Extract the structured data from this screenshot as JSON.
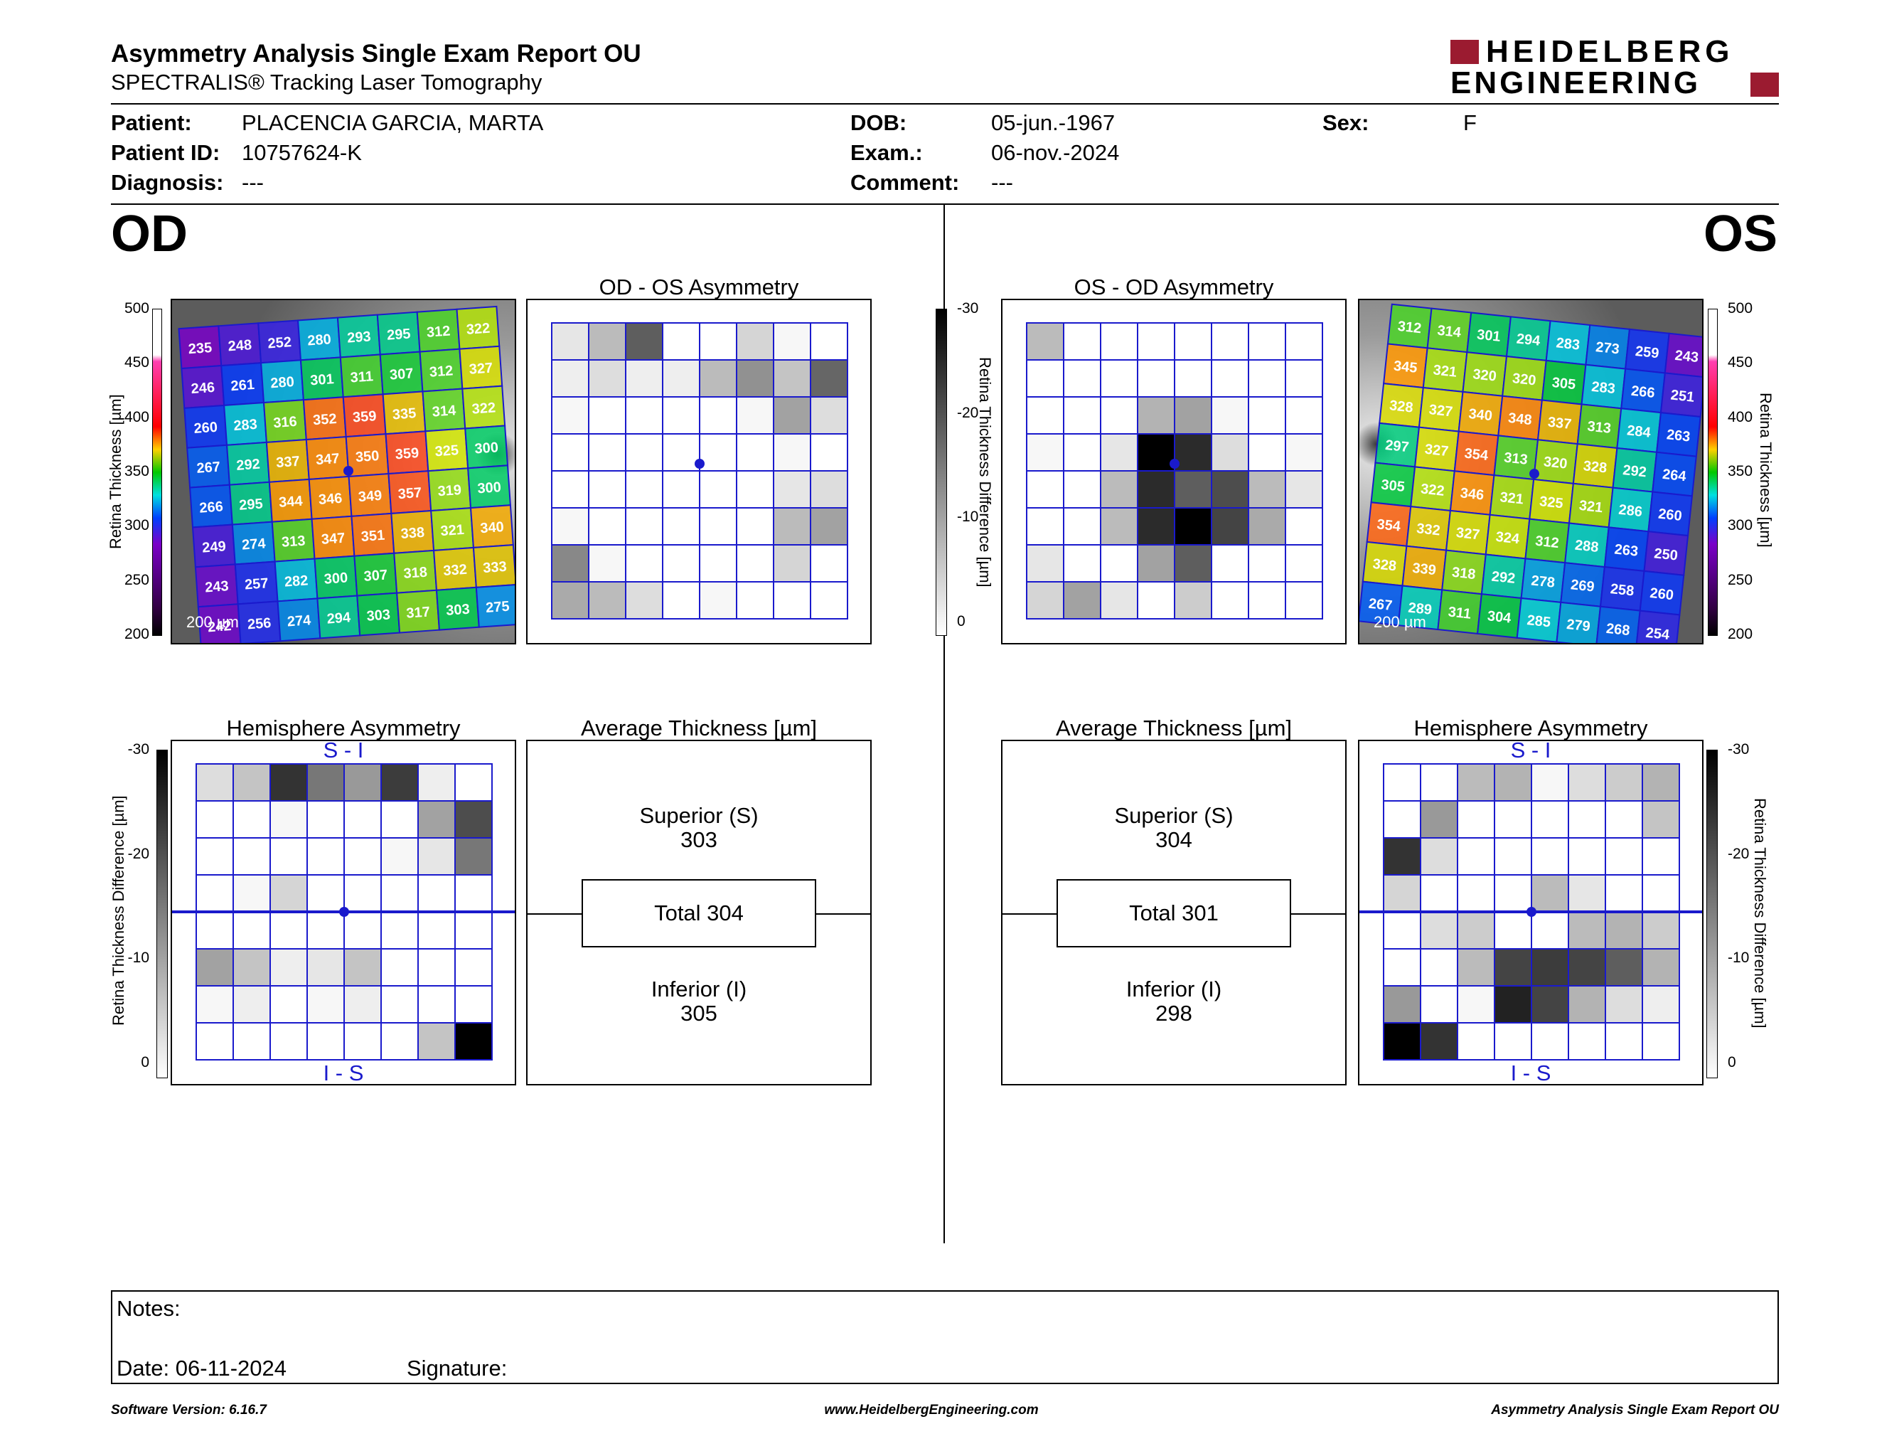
{
  "header": {
    "title": "Asymmetry Analysis Single Exam Report OU",
    "subtitle": "SPECTRALIS® Tracking Laser Tomography",
    "logo_line1": "HEIDELBERG",
    "logo_line2": "ENGINEERING",
    "brand_color": "#9b1b30"
  },
  "patient": {
    "patient_label": "Patient:",
    "patient_value": "PLACENCIA GARCIA, MARTA",
    "id_label": "Patient ID:",
    "id_value": "10757624-K",
    "diag_label": "Diagnosis:",
    "diag_value": "---",
    "dob_label": "DOB:",
    "dob_value": "05-jun.-1967",
    "exam_label": "Exam.:",
    "exam_value": "06-nov.-2024",
    "comment_label": "Comment:",
    "comment_value": "---",
    "sex_label": "Sex:",
    "sex_value": "F"
  },
  "eyes": {
    "od": "OD",
    "os": "OS"
  },
  "labels": {
    "od_asym": "OD - OS Asymmetry",
    "os_asym": "OS - OD Asymmetry",
    "hemi": "Hemisphere Asymmetry",
    "avg": "Average Thickness [µm]",
    "s_i": "S - I",
    "i_s": "I - S",
    "rt_axis": "Retina Thickness [µm]",
    "rtd_axis": "Retina Thickness Difference [µm]",
    "scale_bar": "200 µm"
  },
  "thickness_scale": [
    "500",
    "450",
    "400",
    "350",
    "300",
    "250",
    "200"
  ],
  "diff_scale": [
    "-30",
    "-20",
    "-10",
    "0"
  ],
  "od": {
    "grid": [
      [
        235,
        248,
        252,
        280,
        293,
        295,
        312,
        322
      ],
      [
        246,
        261,
        280,
        301,
        311,
        307,
        312,
        327
      ],
      [
        260,
        283,
        316,
        352,
        359,
        335,
        314,
        322
      ],
      [
        267,
        292,
        337,
        347,
        350,
        359,
        325,
        300
      ],
      [
        266,
        295,
        344,
        346,
        349,
        357,
        319,
        300
      ],
      [
        249,
        274,
        313,
        347,
        351,
        338,
        321,
        340
      ],
      [
        243,
        257,
        282,
        300,
        307,
        318,
        332,
        333
      ],
      [
        242,
        256,
        274,
        294,
        303,
        317,
        303,
        275
      ]
    ],
    "avg": {
      "sup_label": "Superior (S)",
      "sup": "303",
      "total": "Total 304",
      "inf_label": "Inferior (I)",
      "inf": "305"
    },
    "asym_gray": [
      [
        3,
        8,
        19,
        0,
        0,
        5,
        1,
        0
      ],
      [
        2,
        4,
        2,
        2,
        8,
        13,
        7,
        18
      ],
      [
        1,
        0,
        0,
        0,
        0,
        1,
        11,
        4
      ],
      [
        0,
        0,
        0,
        0,
        0,
        0,
        1,
        0
      ],
      [
        0,
        0,
        0,
        0,
        0,
        0,
        3,
        4
      ],
      [
        1,
        0,
        0,
        0,
        0,
        0,
        8,
        11
      ],
      [
        14,
        1,
        0,
        0,
        0,
        0,
        5,
        0
      ],
      [
        10,
        8,
        4,
        0,
        1,
        0,
        0,
        0
      ]
    ],
    "hemi_gray": [
      [
        4,
        7,
        24,
        16,
        12,
        23,
        2,
        0
      ],
      [
        0,
        0,
        1,
        0,
        0,
        0,
        11,
        21
      ],
      [
        0,
        0,
        0,
        0,
        0,
        1,
        3,
        16
      ],
      [
        0,
        1,
        5,
        0,
        0,
        0,
        0,
        0
      ],
      [
        0,
        0,
        0,
        0,
        0,
        0,
        0,
        0
      ],
      [
        11,
        7,
        2,
        3,
        7,
        0,
        0,
        0
      ],
      [
        1,
        2,
        0,
        1,
        2,
        0,
        0,
        0
      ],
      [
        0,
        0,
        0,
        0,
        0,
        0,
        7,
        30
      ]
    ]
  },
  "os": {
    "grid": [
      [
        312,
        314,
        301,
        294,
        283,
        273,
        259,
        243
      ],
      [
        345,
        321,
        320,
        320,
        305,
        283,
        266,
        251
      ],
      [
        328,
        327,
        340,
        348,
        337,
        313,
        284,
        263
      ],
      [
        297,
        327,
        354,
        313,
        320,
        328,
        292,
        264
      ],
      [
        305,
        322,
        346,
        321,
        325,
        321,
        286,
        260
      ],
      [
        354,
        332,
        327,
        324,
        312,
        288,
        263,
        250
      ],
      [
        328,
        339,
        318,
        292,
        278,
        269,
        258,
        260
      ],
      [
        267,
        289,
        311,
        304,
        285,
        279,
        268,
        254
      ]
    ],
    "avg": {
      "sup_label": "Superior (S)",
      "sup": "304",
      "total": "Total 301",
      "inf_label": "Inferior (I)",
      "inf": "298"
    },
    "asym_gray": [
      [
        8,
        0,
        0,
        0,
        0,
        0,
        0,
        0
      ],
      [
        0,
        0,
        0,
        0,
        0,
        0,
        0,
        0
      ],
      [
        0,
        0,
        0,
        9,
        11,
        1,
        0,
        0
      ],
      [
        1,
        0,
        3,
        30,
        25,
        4,
        0,
        1
      ],
      [
        0,
        0,
        8,
        25,
        19,
        21,
        8,
        3
      ],
      [
        0,
        0,
        8,
        25,
        30,
        22,
        10,
        0
      ],
      [
        3,
        0,
        0,
        11,
        19,
        0,
        0,
        0
      ],
      [
        5,
        11,
        3,
        0,
        6,
        0,
        0,
        0
      ]
    ],
    "hemi_gray": [
      [
        0,
        0,
        8,
        9,
        1,
        4,
        6,
        9
      ],
      [
        0,
        12,
        0,
        0,
        0,
        0,
        0,
        7
      ],
      [
        24,
        4,
        0,
        0,
        0,
        0,
        0,
        0
      ],
      [
        5,
        0,
        0,
        0,
        8,
        3,
        0,
        0
      ],
      [
        0,
        4,
        6,
        0,
        0,
        8,
        9,
        6
      ],
      [
        0,
        0,
        8,
        22,
        23,
        22,
        19,
        9
      ],
      [
        12,
        0,
        1,
        26,
        22,
        9,
        4,
        2
      ],
      [
        30,
        24,
        0,
        0,
        0,
        0,
        0,
        0
      ]
    ]
  },
  "notes": {
    "label": "Notes:",
    "date": "Date: 06-11-2024",
    "signature": "Signature:"
  },
  "footer": {
    "left": "Software Version: 6.16.7",
    "center": "www.HeidelbergEngineering.com",
    "right": "Asymmetry Analysis Single Exam Report OU"
  }
}
